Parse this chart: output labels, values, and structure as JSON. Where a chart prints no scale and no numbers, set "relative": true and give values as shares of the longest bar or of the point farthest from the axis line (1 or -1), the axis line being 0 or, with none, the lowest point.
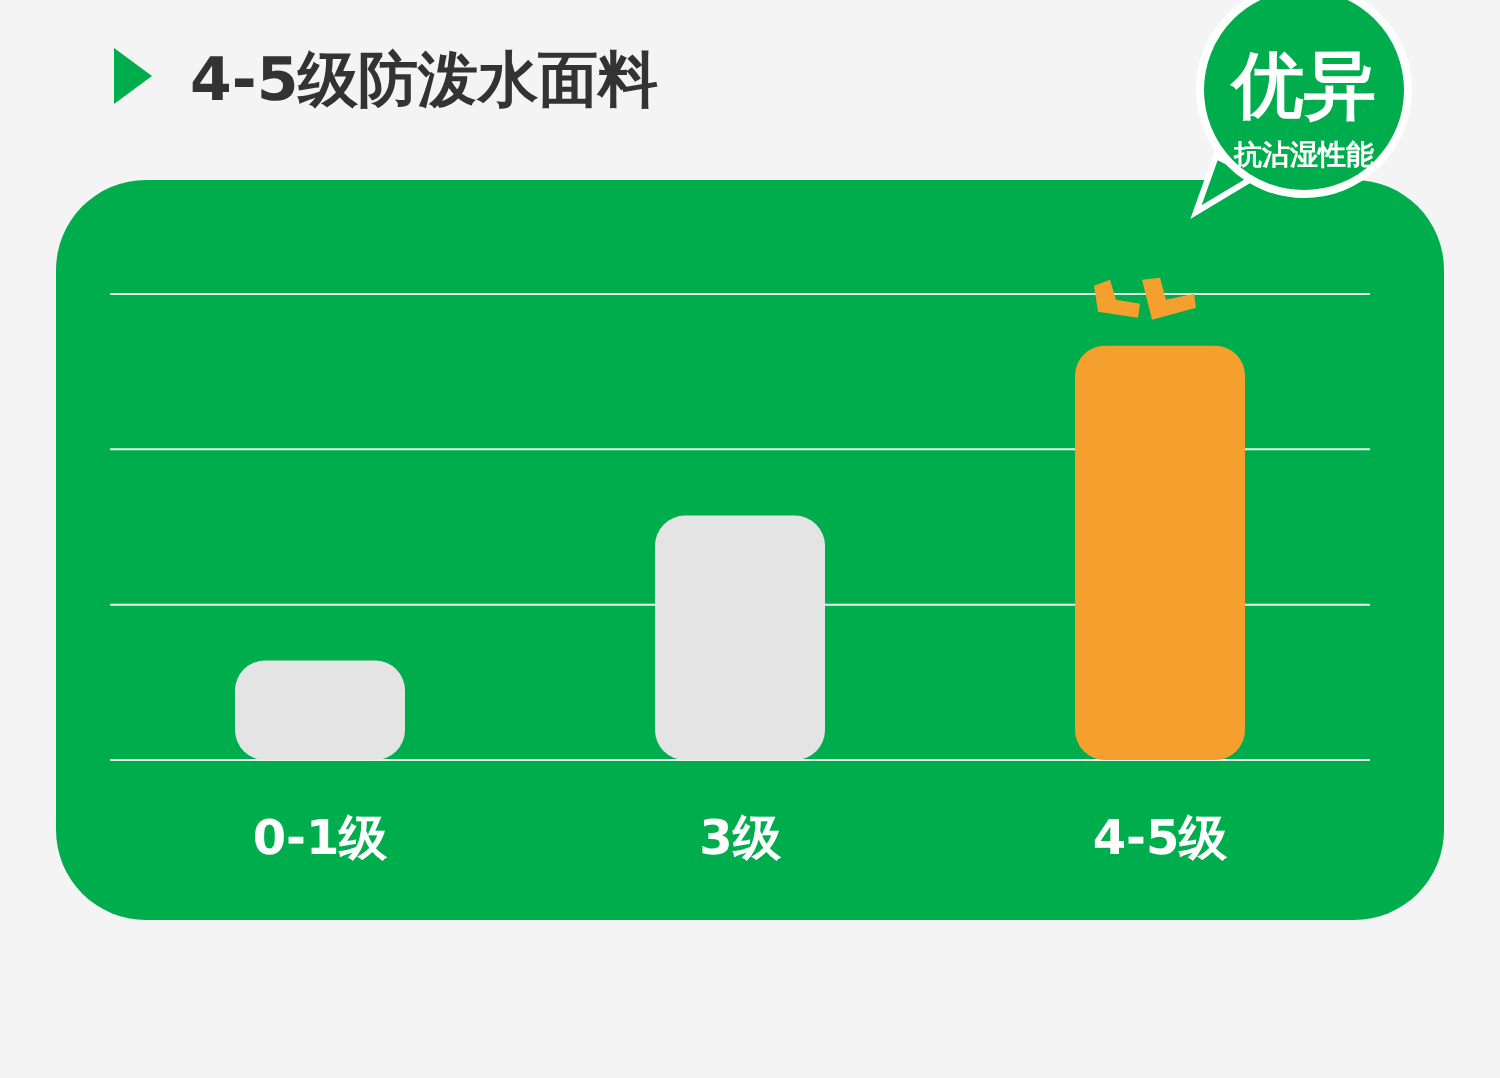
{
  "chart_data": {
    "type": "bar",
    "title": "4-5级防泼水面料",
    "categories": [
      "0-1级",
      "3级",
      "4-5级"
    ],
    "values": [
      0.24,
      0.59,
      1
    ],
    "colors": [
      "#e4e4e4",
      "#e4e4e4",
      "#f5a02e"
    ],
    "relative": true,
    "ref_lines": [
      {
        "axis": "y",
        "value": 0.375,
        "color": "#e8f5ec"
      },
      {
        "axis": "y",
        "value": 0.75,
        "color": "#e8f5ec"
      },
      {
        "axis": "y",
        "value": 1.125,
        "color": "#e8f5ec"
      }
    ],
    "annotations": [
      "优异",
      "抗沾湿性能"
    ]
  }
}
